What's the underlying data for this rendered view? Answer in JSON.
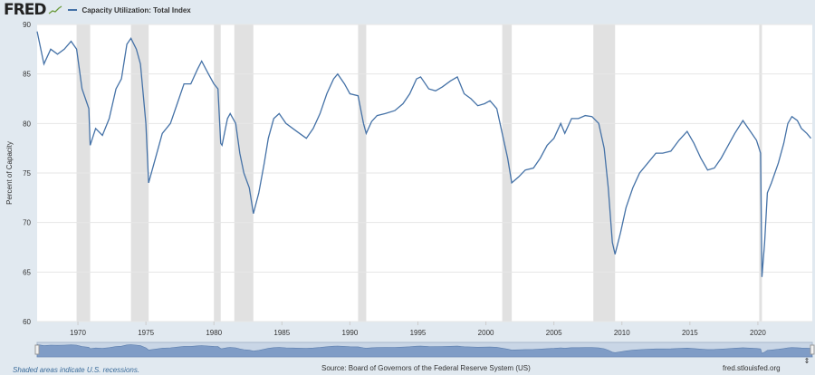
{
  "header": {
    "logo": "FRED",
    "series_name": "Capacity Utilization: Total Index",
    "series_color": "#4572a7"
  },
  "footer": {
    "recession_note": "Shaded areas indicate U.S. recessions.",
    "source": "Source: Board of Governors of the Federal Reserve System (US)",
    "site": "fred.stlouisfed.org"
  },
  "chart_data": {
    "type": "line",
    "title": "",
    "xlabel": "",
    "ylabel": "Percent of Capacity",
    "xlim": [
      1967,
      2024
    ],
    "ylim": [
      60,
      90
    ],
    "grid": "horizontal",
    "legend": "top-left",
    "xticks": [
      "1970",
      "1975",
      "1980",
      "1985",
      "1990",
      "1995",
      "2000",
      "2005",
      "2010",
      "2015",
      "2020"
    ],
    "yticks": [
      "60",
      "65",
      "70",
      "75",
      "80",
      "85",
      "90"
    ],
    "recessions": [
      [
        1969.9,
        1970.9
      ],
      [
        1973.9,
        1975.2
      ],
      [
        1980.0,
        1980.5
      ],
      [
        1981.5,
        1982.9
      ],
      [
        1990.6,
        1991.2
      ],
      [
        2001.2,
        2001.9
      ],
      [
        2007.9,
        2009.5
      ],
      [
        2020.1,
        2020.3
      ]
    ],
    "series": [
      {
        "name": "Capacity Utilization: Total Index",
        "color": "#4572a7",
        "x": [
          1967.0,
          1967.5,
          1968.0,
          1968.5,
          1969.0,
          1969.5,
          1969.9,
          1970.3,
          1970.8,
          1970.9,
          1971.3,
          1971.8,
          1972.3,
          1972.8,
          1973.2,
          1973.6,
          1973.9,
          1974.3,
          1974.6,
          1975.0,
          1975.2,
          1975.7,
          1976.2,
          1976.8,
          1977.3,
          1977.8,
          1978.3,
          1978.8,
          1979.1,
          1979.6,
          1980.0,
          1980.3,
          1980.5,
          1980.6,
          1981.0,
          1981.2,
          1981.6,
          1981.9,
          1982.2,
          1982.6,
          1982.9,
          1983.3,
          1983.7,
          1984.0,
          1984.4,
          1984.8,
          1985.3,
          1985.8,
          1986.3,
          1986.8,
          1987.3,
          1987.8,
          1988.3,
          1988.8,
          1989.1,
          1989.6,
          1990.0,
          1990.6,
          1991.0,
          1991.2,
          1991.6,
          1992.0,
          1992.6,
          1993.3,
          1993.9,
          1994.4,
          1994.9,
          1995.2,
          1995.8,
          1996.3,
          1996.8,
          1997.4,
          1997.9,
          1998.4,
          1998.9,
          1999.4,
          1999.9,
          2000.3,
          2000.8,
          2001.2,
          2001.6,
          2001.9,
          2002.4,
          2002.9,
          2003.5,
          2004.0,
          2004.5,
          2005.0,
          2005.5,
          2005.8,
          2006.3,
          2006.8,
          2007.3,
          2007.8,
          2008.3,
          2008.7,
          2009.0,
          2009.3,
          2009.5,
          2009.9,
          2010.3,
          2010.8,
          2011.3,
          2011.9,
          2012.5,
          2013.0,
          2013.6,
          2014.2,
          2014.8,
          2015.3,
          2015.8,
          2016.3,
          2016.8,
          2017.3,
          2017.7,
          2018.3,
          2018.9,
          2019.4,
          2019.9,
          2020.2,
          2020.3,
          2020.5,
          2020.7,
          2021.0,
          2021.5,
          2021.9,
          2022.2,
          2022.5,
          2022.9,
          2023.2,
          2023.6,
          2023.9
        ],
        "y": [
          89.3,
          86.0,
          87.5,
          87.0,
          87.5,
          88.3,
          87.5,
          83.5,
          81.5,
          77.8,
          79.5,
          78.8,
          80.5,
          83.5,
          84.5,
          88.0,
          88.6,
          87.5,
          86.0,
          80.0,
          74.0,
          76.5,
          79.0,
          80.0,
          82.0,
          84.0,
          84.0,
          85.5,
          86.3,
          85.0,
          84.0,
          83.5,
          78.0,
          77.8,
          80.5,
          81.0,
          80.0,
          77.0,
          75.0,
          73.5,
          70.9,
          73.0,
          76.0,
          78.5,
          80.5,
          81.0,
          80.0,
          79.5,
          79.0,
          78.5,
          79.5,
          81.0,
          83.0,
          84.5,
          85.0,
          84.0,
          83.0,
          82.8,
          80.0,
          79.0,
          80.2,
          80.8,
          81.0,
          81.3,
          82.0,
          83.0,
          84.5,
          84.7,
          83.5,
          83.3,
          83.7,
          84.3,
          84.7,
          83.0,
          82.5,
          81.8,
          82.0,
          82.3,
          81.5,
          79.0,
          76.5,
          74.0,
          74.6,
          75.3,
          75.5,
          76.5,
          77.8,
          78.5,
          80.0,
          79.0,
          80.5,
          80.5,
          80.8,
          80.7,
          80.0,
          77.5,
          73.5,
          68.0,
          66.8,
          69.0,
          71.5,
          73.5,
          75.0,
          76.0,
          77.0,
          77.0,
          77.2,
          78.3,
          79.2,
          78.0,
          76.5,
          75.3,
          75.5,
          76.5,
          77.5,
          79.0,
          80.3,
          79.3,
          78.3,
          77.0,
          64.5,
          68.0,
          73.0,
          74.0,
          76.0,
          78.0,
          80.0,
          80.7,
          80.3,
          79.5,
          79.0,
          78.5
        ]
      }
    ]
  }
}
